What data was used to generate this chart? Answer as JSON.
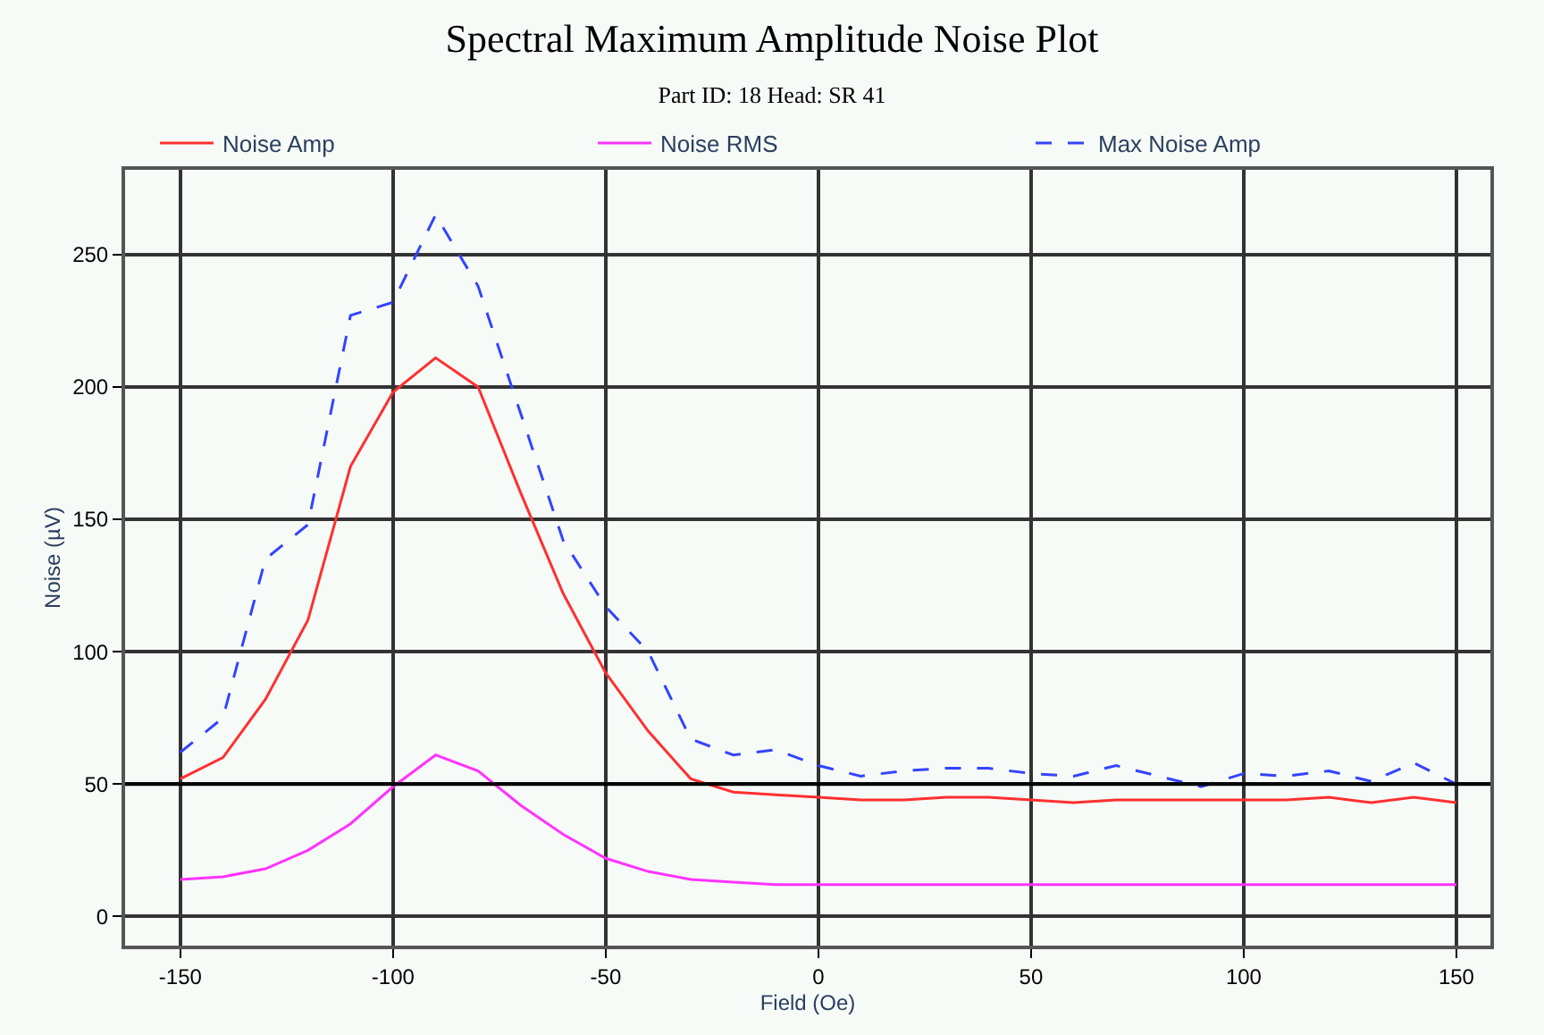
{
  "chart_data": {
    "type": "line",
    "title": "Spectral Maximum Amplitude Noise Plot",
    "subtitle": "Part ID: 18 Head: SR 41",
    "xlabel": "Field (Oe)",
    "ylabel": "Noise (µV)",
    "x": [
      -150,
      -140,
      -130,
      -120,
      -110,
      -100,
      -90,
      -80,
      -70,
      -60,
      -50,
      -40,
      -30,
      -20,
      -10,
      0,
      10,
      20,
      30,
      40,
      50,
      60,
      70,
      80,
      90,
      100,
      110,
      120,
      130,
      140,
      150
    ],
    "series": [
      {
        "name": "Noise Amp",
        "color": "#ff3030",
        "line_style": "solid",
        "values": [
          52,
          60,
          82,
          112,
          170,
          198,
          211,
          200,
          160,
          122,
          92,
          70,
          52,
          47,
          46,
          45,
          44,
          44,
          45,
          45,
          44,
          43,
          44,
          44,
          44,
          44,
          44,
          45,
          43,
          45,
          43
        ]
      },
      {
        "name": "Noise RMS",
        "color": "#ff33ff",
        "line_style": "solid",
        "values": [
          14,
          15,
          18,
          25,
          35,
          49,
          61,
          55,
          42,
          31,
          22,
          17,
          14,
          13,
          12,
          12,
          12,
          12,
          12,
          12,
          12,
          12,
          12,
          12,
          12,
          12,
          12,
          12,
          12,
          12,
          12
        ]
      },
      {
        "name": "Max Noise Amp",
        "color": "#3344ff",
        "line_style": "dashed",
        "values": [
          62,
          75,
          135,
          148,
          227,
          232,
          265,
          238,
          190,
          142,
          117,
          100,
          67,
          61,
          63,
          57,
          53,
          55,
          56,
          56,
          54,
          53,
          57,
          53,
          49,
          54,
          53,
          55,
          51,
          58,
          50
        ]
      }
    ],
    "xlim": [
      -163,
      158
    ],
    "ylim": [
      -11,
      282
    ],
    "xticks": [
      -150,
      -100,
      -50,
      0,
      50,
      100,
      150
    ],
    "yticks": [
      0,
      50,
      100,
      150,
      200,
      250
    ],
    "ref_lines": [
      {
        "axis": "y",
        "value": 50,
        "color": "#000000"
      }
    ],
    "grid": true,
    "legend": "top",
    "marker": "none"
  }
}
